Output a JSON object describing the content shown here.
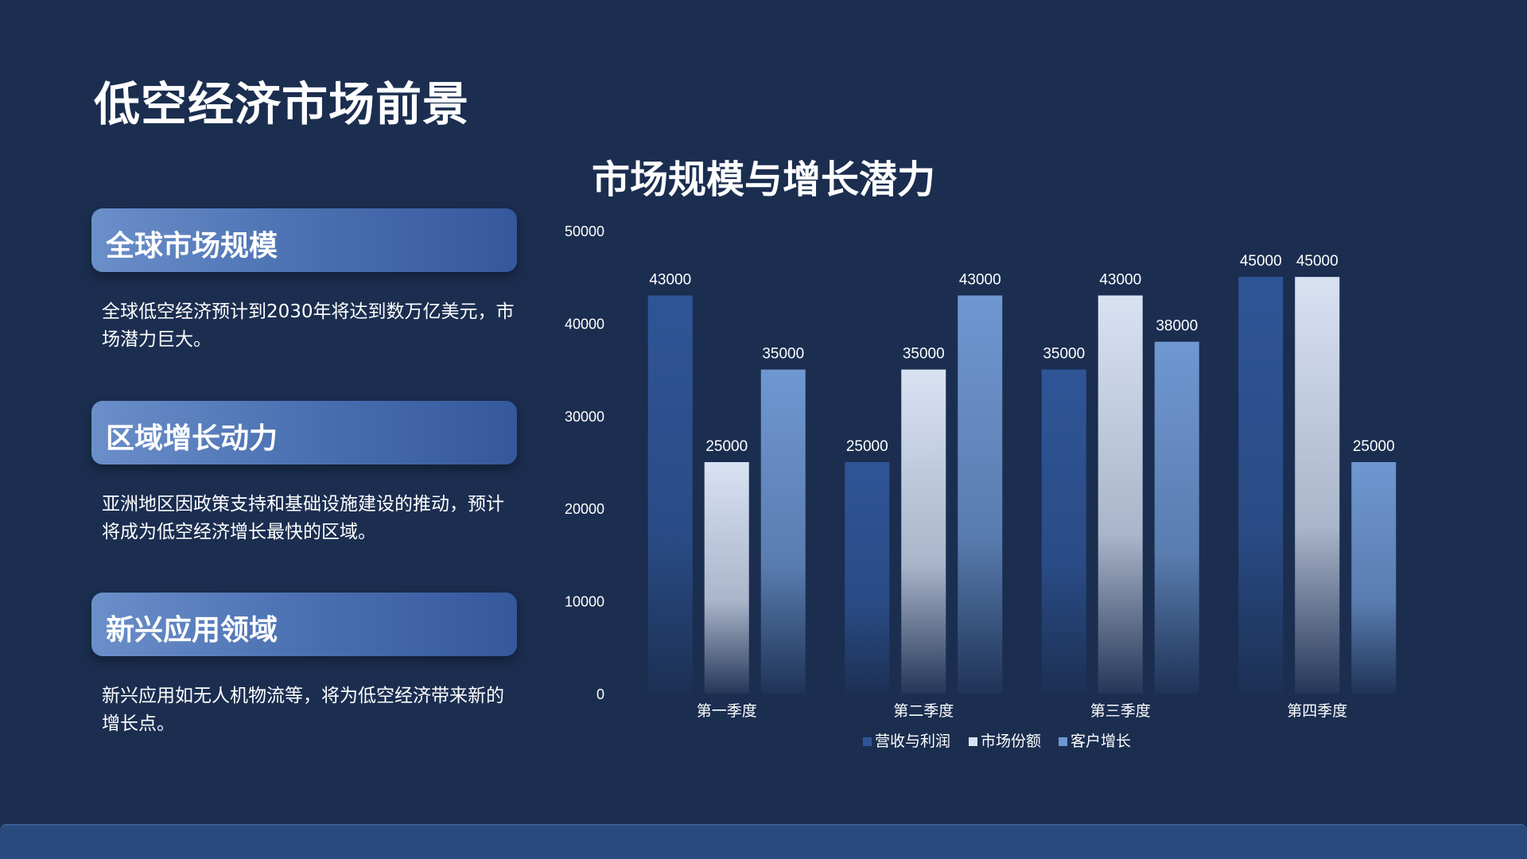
{
  "page": {
    "title": "低空经济市场前景"
  },
  "cards": [
    {
      "heading": "全球市场规模",
      "text": "全球低空经济预计到2030年将达到数万亿美元，市场潜力巨大。"
    },
    {
      "heading": "区域增长动力",
      "text": "亚洲地区因政策支持和基础设施建设的推动，预计将成为低空经济增长最快的区域。"
    },
    {
      "heading": "新兴应用领域",
      "text": "新兴应用如无人机物流等，将为低空经济带来新的增长点。"
    }
  ],
  "chart_data": {
    "type": "bar",
    "title": "市场规模与增长潜力",
    "categories": [
      "第一季度",
      "第二季度",
      "第三季度",
      "第四季度"
    ],
    "series": [
      {
        "name": "营收与利润",
        "values": [
          43000,
          25000,
          35000,
          45000
        ],
        "color": "#2f5597"
      },
      {
        "name": "市场份额",
        "values": [
          25000,
          35000,
          43000,
          45000
        ],
        "color": "#d9e2f3"
      },
      {
        "name": "客户增长",
        "values": [
          35000,
          43000,
          38000,
          25000
        ],
        "color": "#6f97d0"
      }
    ],
    "ylim": [
      0,
      50000
    ],
    "yticks": [
      0,
      10000,
      20000,
      30000,
      40000,
      50000
    ],
    "grid": false,
    "legend": "bottom",
    "data_labels": true
  }
}
